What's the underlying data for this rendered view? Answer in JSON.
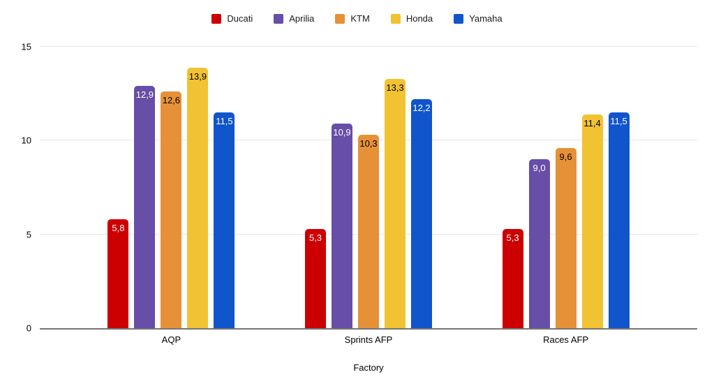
{
  "chart_data": {
    "type": "bar",
    "title": "",
    "categories": [
      "AQP",
      "Sprints AFP",
      "Races AFP"
    ],
    "series": [
      {
        "name": "Ducati",
        "color": "#CC0000",
        "label_color": "#FFFFFF",
        "values": [
          5.8,
          5.3,
          5.3
        ],
        "data_labels": [
          "5,8",
          "5,3",
          "5,3"
        ]
      },
      {
        "name": "Aprilia",
        "color": "#674EA7",
        "label_color": "#FFFFFF",
        "values": [
          12.9,
          10.9,
          9.0
        ],
        "data_labels": [
          "12,9",
          "10,9",
          "9,0"
        ]
      },
      {
        "name": "KTM",
        "color": "#E69138",
        "label_color": "#000000",
        "values": [
          12.6,
          10.3,
          9.6
        ],
        "data_labels": [
          "12,6",
          "10,3",
          "9,6"
        ]
      },
      {
        "name": "Honda",
        "color": "#F1C232",
        "label_color": "#000000",
        "values": [
          13.9,
          13.3,
          11.4
        ],
        "data_labels": [
          "13,9",
          "13,3",
          "11,4"
        ]
      },
      {
        "name": "Yamaha",
        "color": "#1155CC",
        "label_color": "#FFFFFF",
        "values": [
          11.5,
          12.2,
          11.5
        ],
        "data_labels": [
          "11,5",
          "12,2",
          "11,5"
        ]
      }
    ],
    "xlabel": "Factory",
    "ylabel": "",
    "ylim": [
      0,
      15
    ],
    "yticks": [
      0,
      5,
      10,
      15
    ],
    "ytick_labels": [
      "0",
      "5",
      "10",
      "15"
    ],
    "grid": true,
    "legend_position": "top",
    "decimal_separator": ","
  },
  "colors": {
    "background": "#FFFFFF",
    "gridline": "#E6E6E6",
    "baseline": "#757575",
    "axis_text": "#000000",
    "legend_text": "#1A1A1A"
  }
}
